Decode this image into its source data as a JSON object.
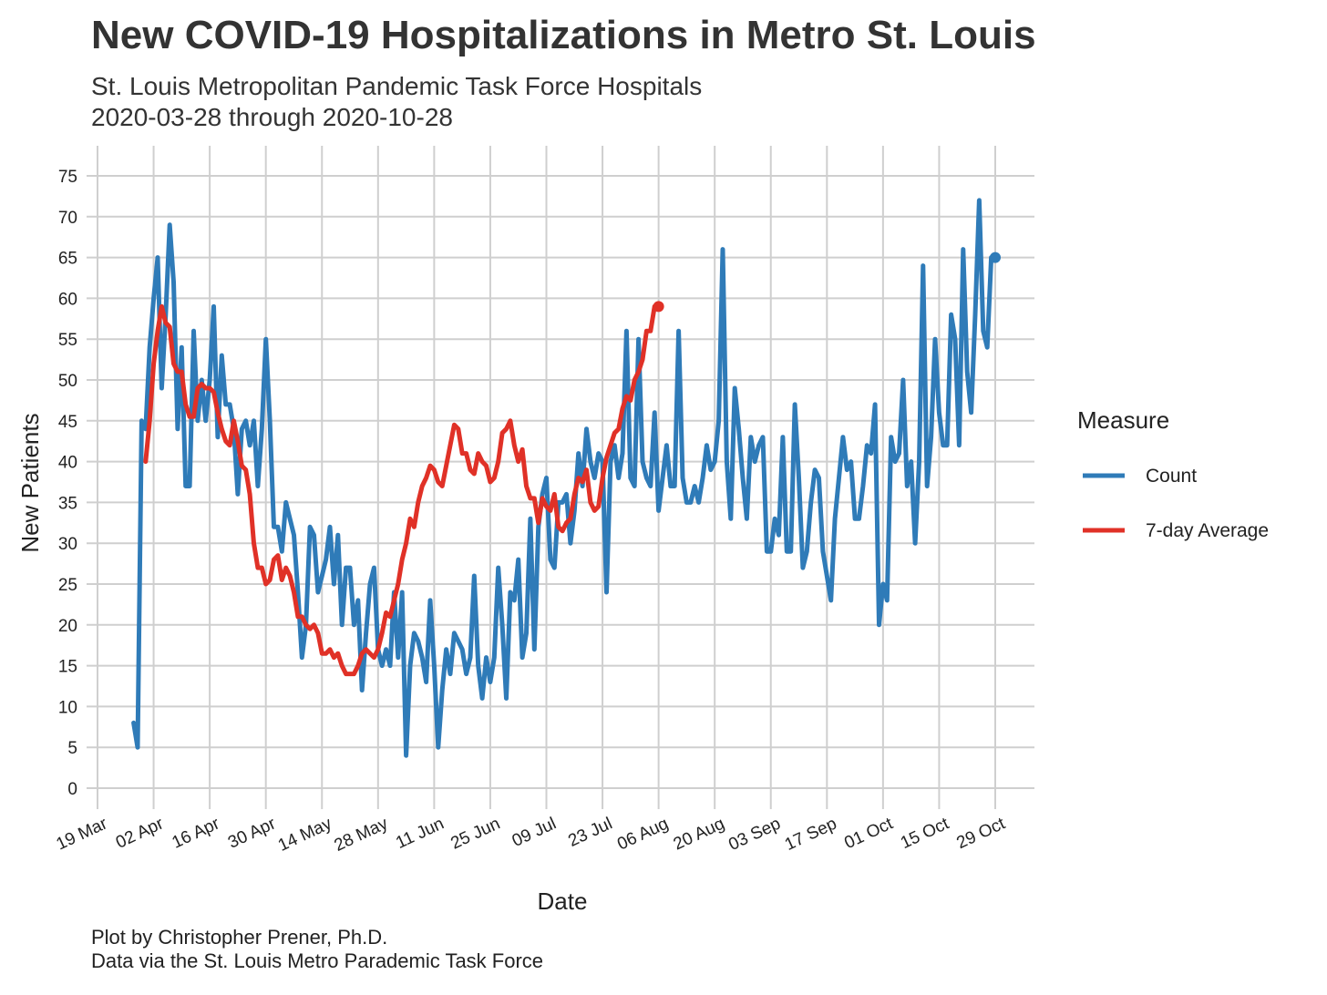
{
  "chart_data": {
    "type": "line",
    "title": "New COVID-19 Hospitalizations in Metro St. Louis",
    "subtitle": [
      "St. Louis Metropolitan Pandemic Task Force Hospitals",
      "2020-03-28 through 2020-10-28"
    ],
    "caption": [
      "Plot by Christopher Prener, Ph.D.",
      "Data via the St. Louis Metro Parademic Task Force"
    ],
    "xlabel": "Date",
    "ylabel": "New Patients",
    "xlim": [
      "2020-03-19",
      "2020-10-29"
    ],
    "ylim": [
      0,
      75
    ],
    "y_ticks": [
      0,
      5,
      10,
      15,
      20,
      25,
      30,
      35,
      40,
      45,
      50,
      55,
      60,
      65,
      70,
      75
    ],
    "x_ticks": [
      {
        "date": "2020-03-19",
        "label": "19 Mar"
      },
      {
        "date": "2020-04-02",
        "label": "02 Apr"
      },
      {
        "date": "2020-04-16",
        "label": "16 Apr"
      },
      {
        "date": "2020-04-30",
        "label": "30 Apr"
      },
      {
        "date": "2020-05-14",
        "label": "14 May"
      },
      {
        "date": "2020-05-28",
        "label": "28 May"
      },
      {
        "date": "2020-06-11",
        "label": "11 Jun"
      },
      {
        "date": "2020-06-25",
        "label": "25 Jun"
      },
      {
        "date": "2020-07-09",
        "label": "09 Jul"
      },
      {
        "date": "2020-07-23",
        "label": "23 Jul"
      },
      {
        "date": "2020-08-06",
        "label": "06 Aug"
      },
      {
        "date": "2020-08-20",
        "label": "20 Aug"
      },
      {
        "date": "2020-09-03",
        "label": "03 Sep"
      },
      {
        "date": "2020-09-17",
        "label": "17 Sep"
      },
      {
        "date": "2020-10-01",
        "label": "01 Oct"
      },
      {
        "date": "2020-10-15",
        "label": "15 Oct"
      },
      {
        "date": "2020-10-29",
        "label": "29 Oct"
      }
    ],
    "grid": true,
    "legend": {
      "title": "Measure",
      "position": "right"
    },
    "series": [
      {
        "name": "Count",
        "color": "#2f7bb8",
        "start_date": "2020-03-28",
        "values": [
          8,
          5,
          45,
          44,
          54,
          60,
          65,
          49,
          58,
          69,
          62,
          44,
          54,
          37,
          37,
          56,
          45,
          50,
          45,
          50,
          59,
          43,
          53,
          47,
          47,
          44,
          36,
          44,
          45,
          42,
          45,
          37,
          44,
          55,
          45,
          32,
          32,
          29,
          35,
          33,
          31,
          24,
          16,
          20,
          32,
          31,
          24,
          26,
          28,
          32,
          25,
          31,
          20,
          27,
          27,
          20,
          23,
          12,
          19,
          25,
          27,
          17,
          15,
          17,
          15,
          24,
          16,
          24,
          4,
          15,
          19,
          18,
          16,
          13,
          23,
          15,
          5,
          12,
          17,
          14,
          19,
          18,
          17,
          14,
          16,
          26,
          15,
          11,
          16,
          13,
          16,
          27,
          20,
          11,
          24,
          23,
          28,
          16,
          19,
          33,
          17,
          32,
          36,
          38,
          28,
          27,
          35,
          35,
          36,
          30,
          34,
          41,
          37,
          44,
          40,
          38,
          41,
          40,
          24,
          40,
          42,
          38,
          41,
          56,
          38,
          37,
          55,
          40,
          38,
          37,
          46,
          34,
          38,
          42,
          37,
          37,
          56,
          38,
          35,
          35,
          37,
          35,
          38,
          42,
          39,
          40,
          45,
          66,
          40,
          33,
          49,
          44,
          38,
          33,
          43,
          40,
          42,
          43,
          29,
          29,
          33,
          31,
          43,
          29,
          29,
          47,
          38,
          27,
          29,
          35,
          39,
          38,
          29,
          26,
          23,
          33,
          38,
          43,
          39,
          40,
          33,
          33,
          37,
          42,
          41,
          47,
          20,
          25,
          23,
          43,
          40,
          41,
          50,
          37,
          40,
          30,
          40,
          64,
          37,
          43,
          55,
          46,
          42,
          42,
          58,
          55,
          42,
          66,
          51,
          46,
          58,
          72,
          56,
          54,
          65,
          65
        ]
      },
      {
        "name": "7-day Average",
        "color": "#e03127",
        "start_date": "2020-03-31",
        "values": [
          40,
          45,
          52,
          56,
          59,
          57,
          56.5,
          52,
          51,
          51,
          47,
          45.5,
          45.5,
          49,
          49.5,
          49,
          49,
          48.5,
          46,
          44,
          42.5,
          42,
          45,
          42.5,
          39.5,
          39,
          36,
          30,
          27,
          27,
          25,
          25.5,
          28,
          28.5,
          25.5,
          27,
          26,
          24,
          21,
          21,
          20,
          19.5,
          20,
          19,
          16.5,
          16.5,
          17,
          16,
          16.5,
          15,
          14,
          14,
          14,
          15,
          16.5,
          17,
          16.5,
          16,
          17,
          19,
          21.5,
          21,
          23,
          25,
          28,
          30,
          33,
          32,
          35,
          37,
          38,
          39.5,
          39,
          37.5,
          37,
          39.5,
          42,
          44.5,
          44,
          41,
          41,
          39,
          38.5,
          41,
          40,
          39.5,
          37.5,
          38,
          40,
          43.5,
          44,
          45,
          42,
          40,
          41.5,
          37,
          35.5,
          35.5,
          32.5,
          35.5,
          34.5,
          34,
          36,
          32,
          31.5,
          32.5,
          33,
          36,
          38,
          37.5,
          39,
          35,
          34,
          34.5,
          38,
          40.5,
          42,
          43.5,
          44,
          46.5,
          48,
          47.5,
          50,
          51,
          52.5,
          56,
          56,
          59,
          59
        ]
      }
    ]
  }
}
